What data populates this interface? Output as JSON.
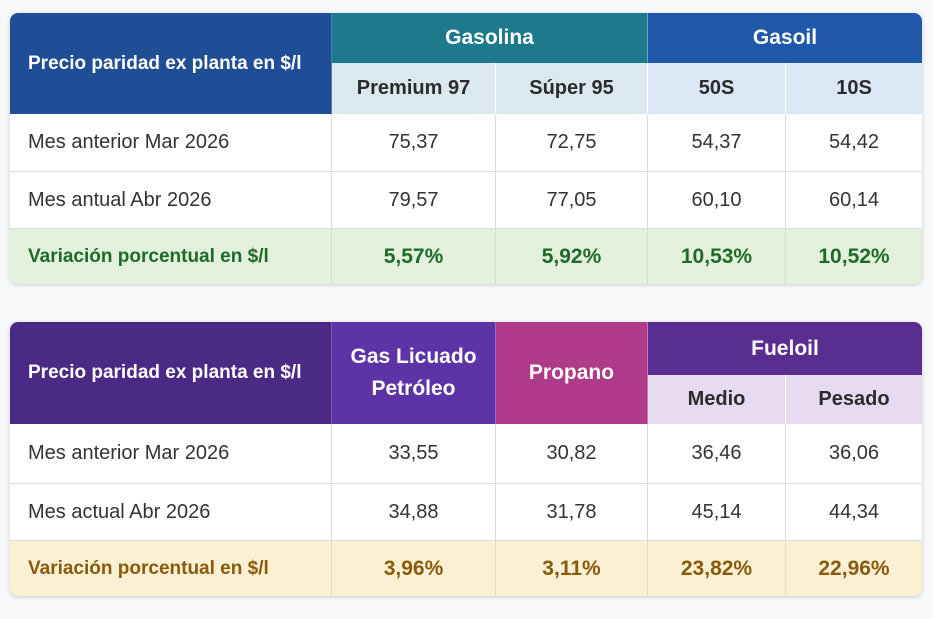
{
  "table1": {
    "header_label": "Precio paridad ex planta en $/l",
    "group1": "Gasolina",
    "group2": "Gasoil",
    "columns": [
      "Premium 97",
      "Súper 95",
      "50S",
      "10S"
    ],
    "rows": [
      {
        "label": "Mes anterior Mar 2026",
        "values": [
          "75,37",
          "72,75",
          "54,37",
          "54,42"
        ]
      },
      {
        "label": "Mes antual Abr 2026",
        "values": [
          "79,57",
          "77,05",
          "60,10",
          "60,14"
        ]
      }
    ],
    "variation": {
      "label": "Variación porcentual en $/l",
      "values": [
        "5,57%",
        "5,92%",
        "10,53%",
        "10,52%"
      ]
    }
  },
  "table2": {
    "header_label": "Precio paridad ex planta en $/l",
    "col1_line1": "Gas Licuado",
    "col1_line2": "Petróleo",
    "col2": "Propano",
    "group3": "Fueloil",
    "subcolumns": [
      "Medio",
      "Pesado"
    ],
    "rows": [
      {
        "label": "Mes anterior Mar 2026",
        "values": [
          "33,55",
          "30,82",
          "36,46",
          "36,06"
        ]
      },
      {
        "label": "Mes actual Abr 2026",
        "values": [
          "34,88",
          "31,78",
          "45,14",
          "44,34"
        ]
      }
    ],
    "variation": {
      "label": "Variación porcentual en $/l",
      "values": [
        "3,96%",
        "3,11%",
        "23,82%",
        "22,96%"
      ]
    }
  },
  "colors": {
    "gasolina_header": "#1c7a8c",
    "gasoil_header": "#1f58a8",
    "table1_label": "#1f4e96",
    "glp_header": "#5c34a8",
    "propano_header": "#b03a8a",
    "fueloil_header": "#5a2d91",
    "variation1_text": "#1d6b2a",
    "variation2_text": "#8a5a0c"
  }
}
